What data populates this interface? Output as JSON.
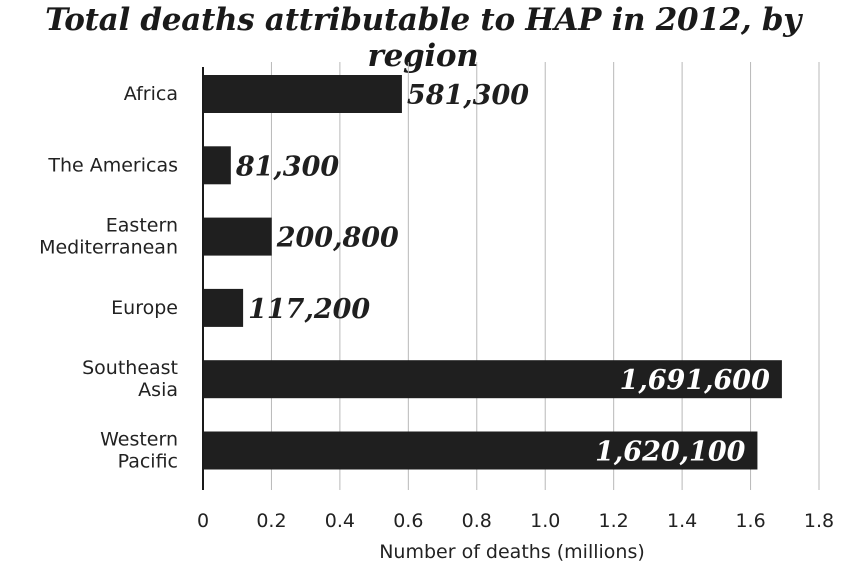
{
  "chart_data": {
    "type": "bar",
    "orientation": "horizontal",
    "title": "Total deaths attributable to HAP in 2012, by region",
    "xlabel": "Number of deaths (millions)",
    "ylabel": "",
    "categories": [
      [
        "Africa"
      ],
      [
        "The Americas"
      ],
      [
        "Eastern",
        "Mediterranean"
      ],
      [
        "Europe"
      ],
      [
        "Southeast",
        "Asia"
      ],
      [
        "Western",
        "Pacific"
      ]
    ],
    "values": [
      0.5813,
      0.0813,
      0.2008,
      0.1172,
      1.6916,
      1.6201
    ],
    "value_labels": [
      "581,300",
      "81,300",
      "200,800",
      "117,200",
      "1,691,600",
      "1,620,100"
    ],
    "xlim": [
      0,
      1.8
    ],
    "x_ticks": [
      "0",
      "0.2",
      "0.4",
      "0.6",
      "0.8",
      "1.0",
      "1.2",
      "1.4",
      "1.6",
      "1.8"
    ],
    "grid": "vertical",
    "legend": "none",
    "colors": {
      "bar": "#1f1f1f",
      "text": "#222222",
      "grid": "#b8b8b8",
      "label_inside": "#ffffff"
    }
  }
}
